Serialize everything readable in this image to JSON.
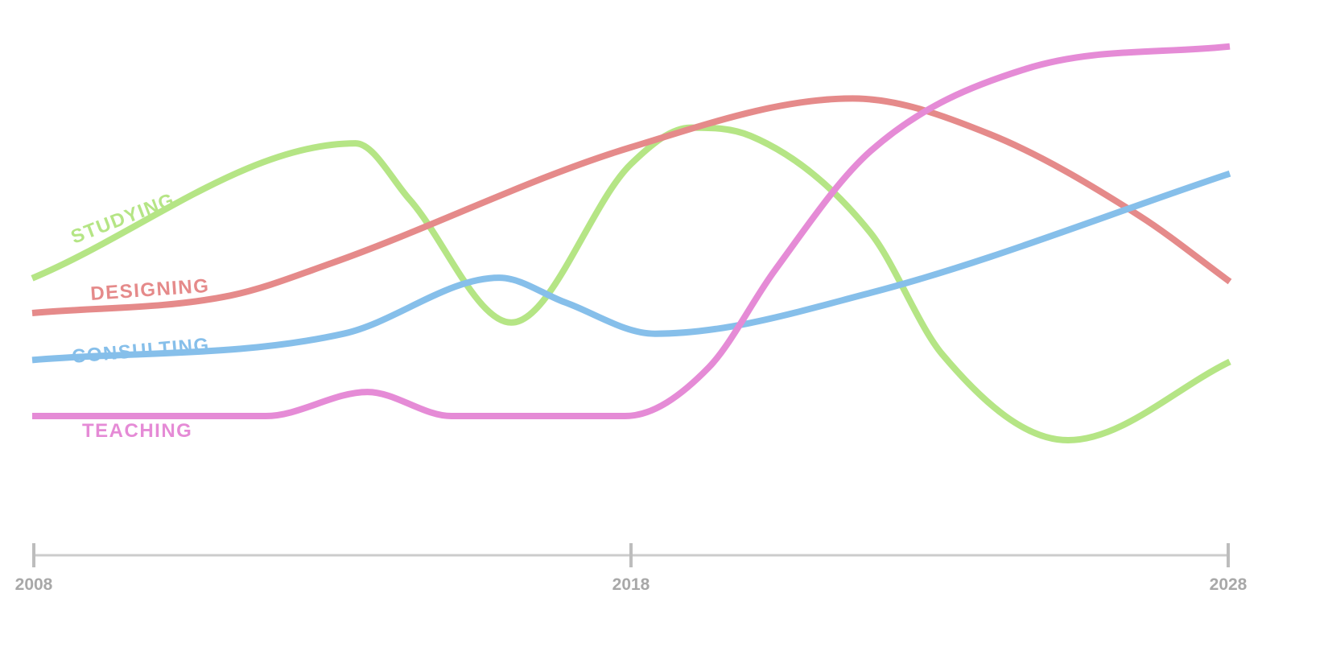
{
  "chart_data": {
    "type": "line",
    "title": "",
    "xlabel": "",
    "ylabel": "",
    "xlim": [
      2008,
      2028
    ],
    "ylim": [
      0,
      10
    ],
    "x_ticks": [
      "2008",
      "2018",
      "2028"
    ],
    "grid": false,
    "legend": "inline labels",
    "y_axis_visible": false,
    "series": [
      {
        "name": "STUDYING",
        "color": "#b5e585",
        "points": [
          [
            2008,
            5.06
          ],
          [
            2013.4,
            7.47
          ],
          [
            2014.3,
            6.47
          ],
          [
            2016.0,
            4.27
          ],
          [
            2018.0,
            7.1
          ],
          [
            2019.0,
            7.75
          ],
          [
            2020.0,
            7.6
          ],
          [
            2022.0,
            5.87
          ],
          [
            2023.2,
            3.7
          ],
          [
            2025.3,
            2.17
          ],
          [
            2028,
            3.57
          ]
        ]
      },
      {
        "name": "DESIGNING",
        "color": "#e58a8a",
        "points": [
          [
            2008,
            4.44
          ],
          [
            2011.3,
            4.75
          ],
          [
            2013.0,
            5.33
          ],
          [
            2018.0,
            7.4
          ],
          [
            2021.7,
            8.27
          ],
          [
            2024.0,
            7.63
          ],
          [
            2026.5,
            6.17
          ],
          [
            2028,
            5.0
          ]
        ]
      },
      {
        "name": "CONSULTING",
        "color": "#86bfea",
        "points": [
          [
            2008,
            3.6
          ],
          [
            2013.2,
            4.07
          ],
          [
            2015.8,
            5.07
          ],
          [
            2016.9,
            4.63
          ],
          [
            2018.4,
            4.07
          ],
          [
            2022.0,
            4.8
          ],
          [
            2028,
            6.93
          ]
        ]
      },
      {
        "name": "TEACHING",
        "color": "#e58bd6",
        "points": [
          [
            2008,
            2.6
          ],
          [
            2011.9,
            2.6
          ],
          [
            2013.6,
            3.03
          ],
          [
            2015.0,
            2.6
          ],
          [
            2017.9,
            2.6
          ],
          [
            2019.3,
            3.47
          ],
          [
            2020.4,
            5.2
          ],
          [
            2022.0,
            7.33
          ],
          [
            2024.6,
            8.8
          ],
          [
            2028,
            9.2
          ]
        ]
      }
    ],
    "labels": [
      "STUDYING",
      "DESIGNING",
      "CONSULTING",
      "TEACHING"
    ]
  }
}
